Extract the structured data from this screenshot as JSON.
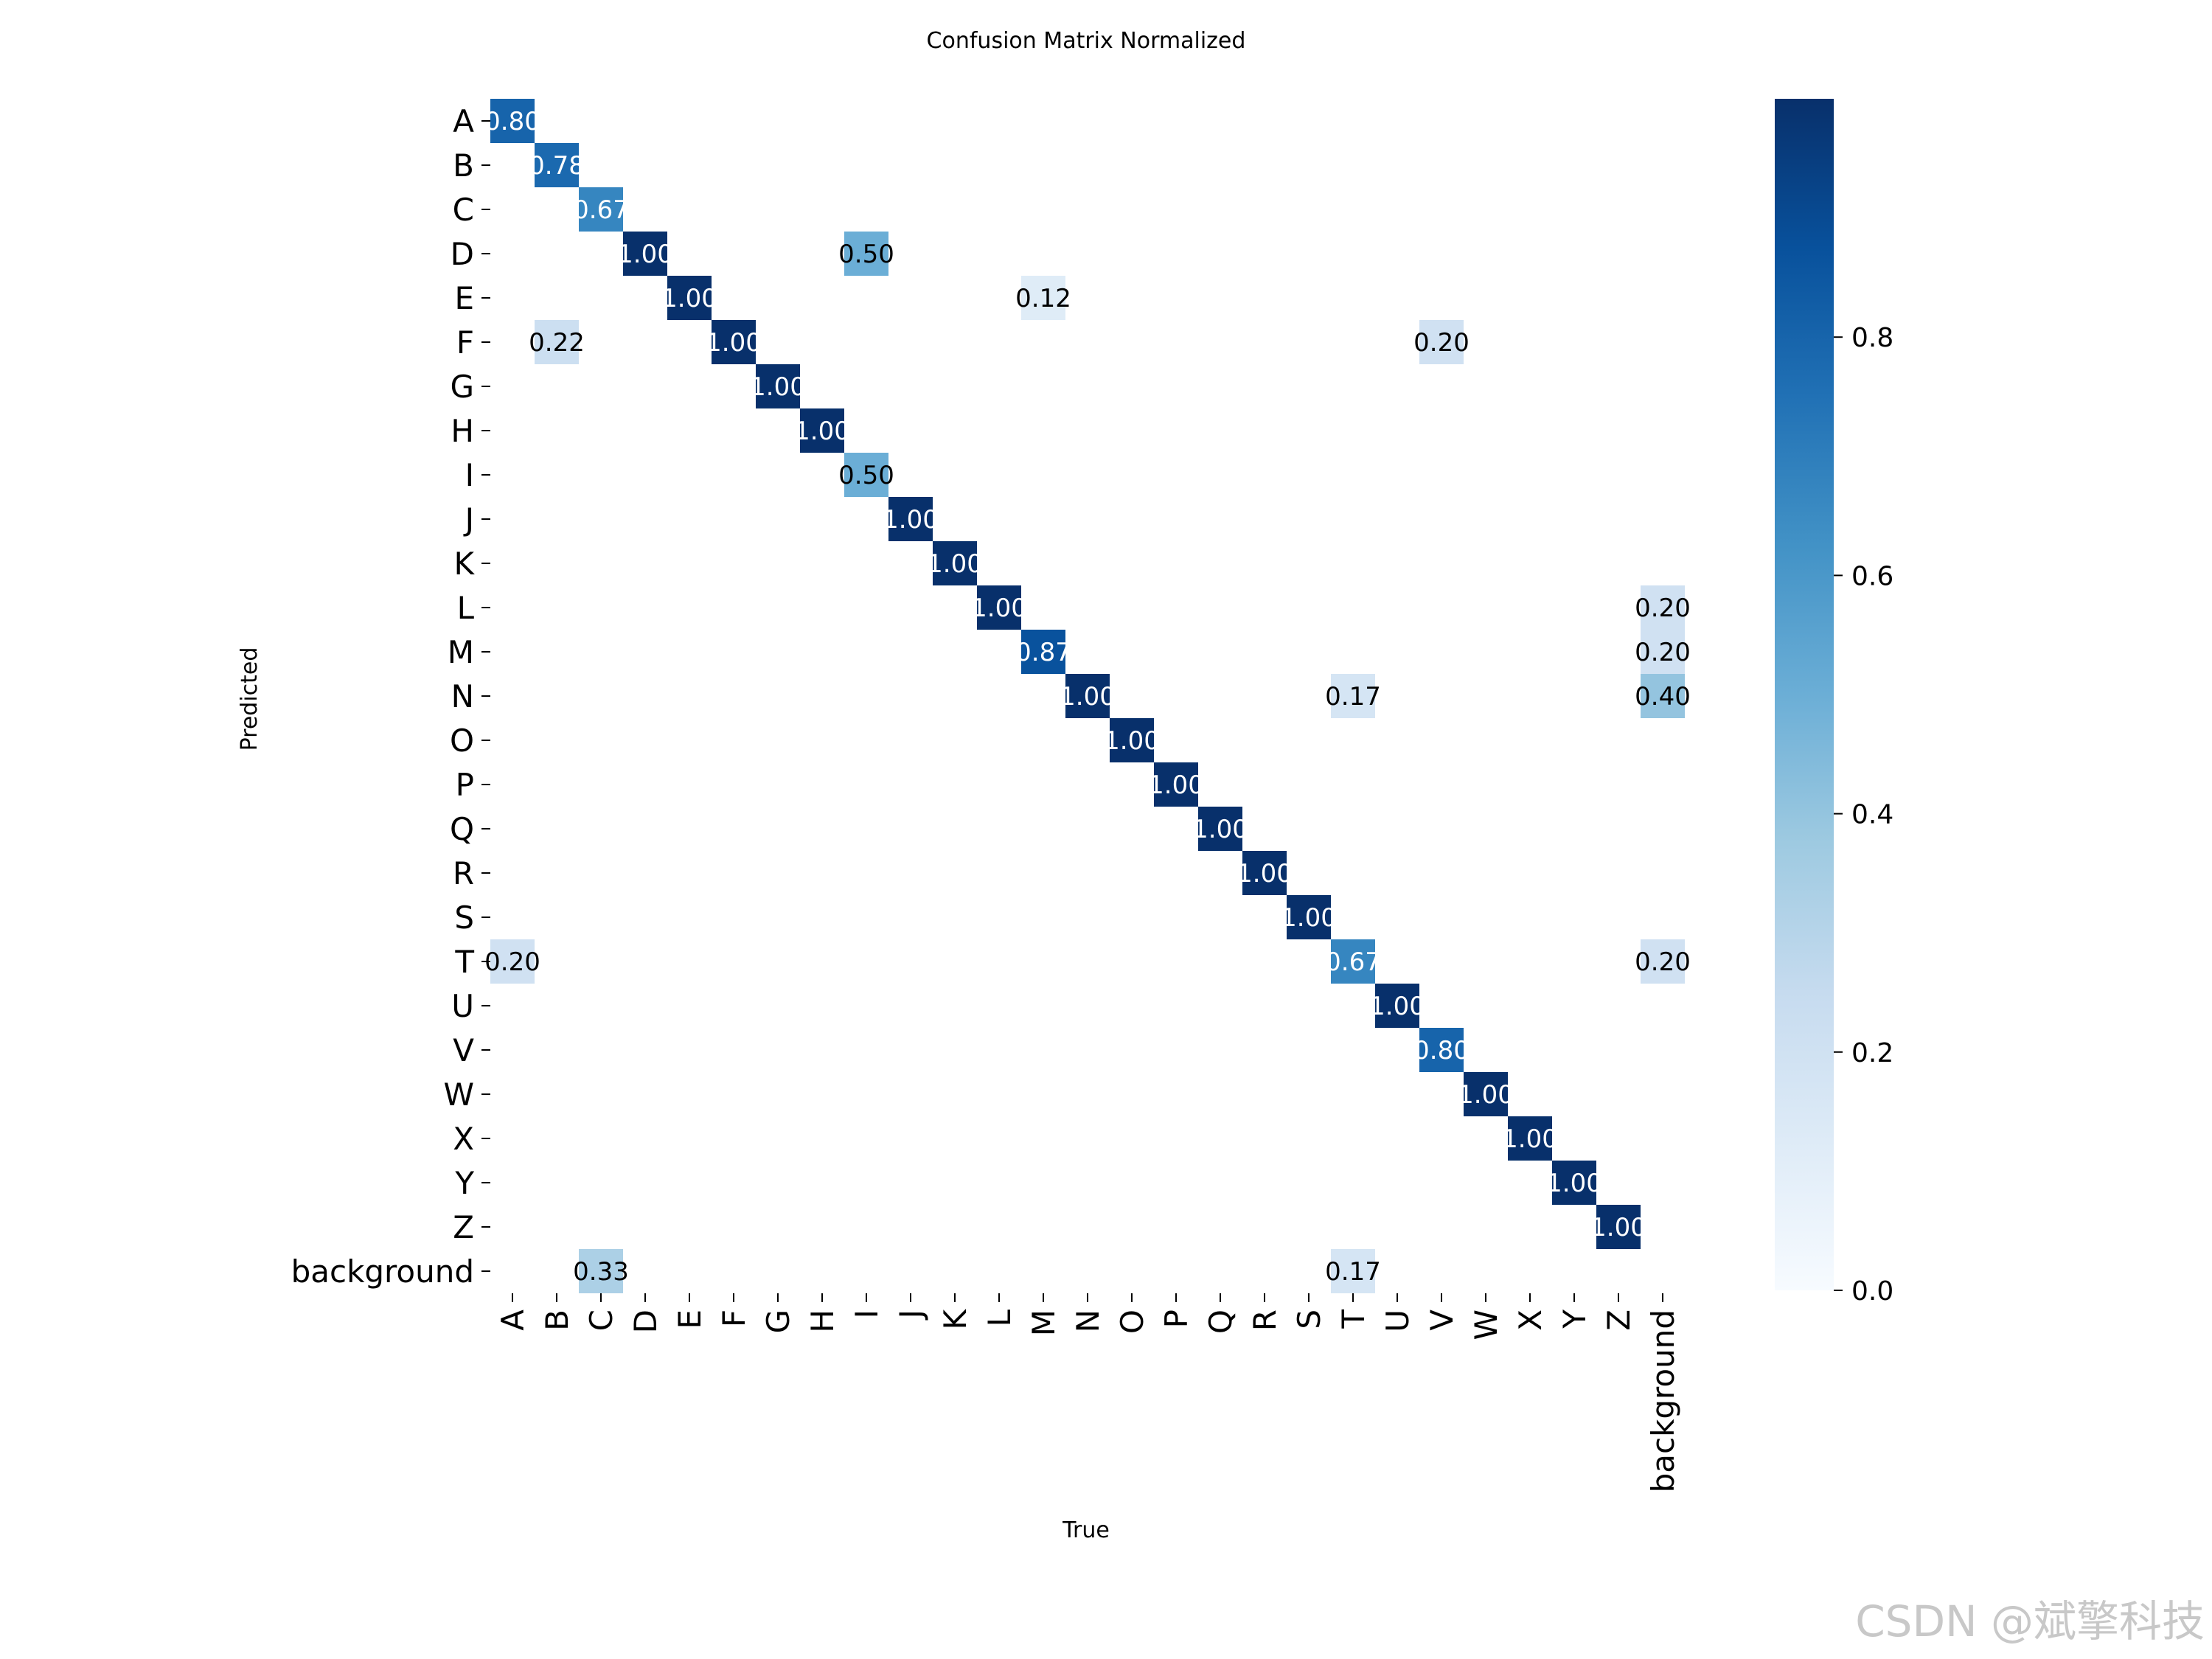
{
  "watermark": "CSDN @斌擎科技",
  "chart_data": {
    "type": "heatmap",
    "title": "Confusion Matrix Normalized",
    "xlabel": "True",
    "ylabel": "Predicted",
    "labels": [
      "A",
      "B",
      "C",
      "D",
      "E",
      "F",
      "G",
      "H",
      "I",
      "J",
      "K",
      "L",
      "M",
      "N",
      "O",
      "P",
      "Q",
      "R",
      "S",
      "T",
      "U",
      "V",
      "W",
      "X",
      "Y",
      "Z",
      "background"
    ],
    "colormap": "Blues",
    "colorbar": {
      "ticks": [
        0.0,
        0.2,
        0.4,
        0.6,
        0.8
      ],
      "tick_labels": [
        "0.0",
        "0.2",
        "0.4",
        "0.6",
        "0.8"
      ],
      "range": [
        0,
        1
      ]
    },
    "cells": [
      {
        "pred": "A",
        "true": "A",
        "value": 0.8
      },
      {
        "pred": "B",
        "true": "B",
        "value": 0.78
      },
      {
        "pred": "C",
        "true": "C",
        "value": 0.67
      },
      {
        "pred": "D",
        "true": "D",
        "value": 1.0
      },
      {
        "pred": "D",
        "true": "I",
        "value": 0.5
      },
      {
        "pred": "E",
        "true": "E",
        "value": 1.0
      },
      {
        "pred": "E",
        "true": "M",
        "value": 0.12
      },
      {
        "pred": "F",
        "true": "B",
        "value": 0.22
      },
      {
        "pred": "F",
        "true": "F",
        "value": 1.0
      },
      {
        "pred": "F",
        "true": "V",
        "value": 0.2
      },
      {
        "pred": "G",
        "true": "G",
        "value": 1.0
      },
      {
        "pred": "H",
        "true": "H",
        "value": 1.0
      },
      {
        "pred": "I",
        "true": "I",
        "value": 0.5
      },
      {
        "pred": "J",
        "true": "J",
        "value": 1.0
      },
      {
        "pred": "K",
        "true": "K",
        "value": 1.0
      },
      {
        "pred": "L",
        "true": "L",
        "value": 1.0
      },
      {
        "pred": "L",
        "true": "background",
        "value": 0.2
      },
      {
        "pred": "M",
        "true": "M",
        "value": 0.87
      },
      {
        "pred": "M",
        "true": "background",
        "value": 0.2
      },
      {
        "pred": "N",
        "true": "N",
        "value": 1.0
      },
      {
        "pred": "N",
        "true": "T",
        "value": 0.17
      },
      {
        "pred": "N",
        "true": "background",
        "value": 0.4
      },
      {
        "pred": "O",
        "true": "O",
        "value": 1.0
      },
      {
        "pred": "P",
        "true": "P",
        "value": 1.0
      },
      {
        "pred": "Q",
        "true": "Q",
        "value": 1.0
      },
      {
        "pred": "R",
        "true": "R",
        "value": 1.0
      },
      {
        "pred": "S",
        "true": "S",
        "value": 1.0
      },
      {
        "pred": "T",
        "true": "A",
        "value": 0.2
      },
      {
        "pred": "T",
        "true": "T",
        "value": 0.67
      },
      {
        "pred": "T",
        "true": "background",
        "value": 0.2
      },
      {
        "pred": "U",
        "true": "U",
        "value": 1.0
      },
      {
        "pred": "V",
        "true": "V",
        "value": 0.8
      },
      {
        "pred": "W",
        "true": "W",
        "value": 1.0
      },
      {
        "pred": "X",
        "true": "X",
        "value": 1.0
      },
      {
        "pred": "Y",
        "true": "Y",
        "value": 1.0
      },
      {
        "pred": "Z",
        "true": "Z",
        "value": 1.0
      },
      {
        "pred": "background",
        "true": "C",
        "value": 0.33
      },
      {
        "pred": "background",
        "true": "T",
        "value": 0.17
      }
    ]
  }
}
